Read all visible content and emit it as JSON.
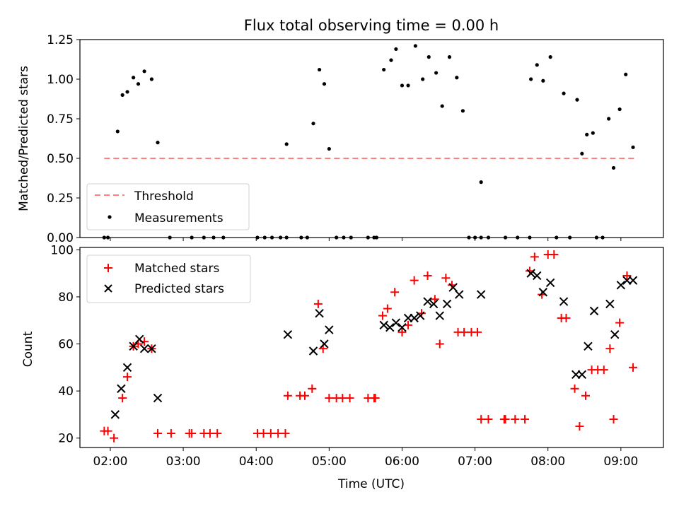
{
  "chart_data": [
    {
      "type": "scatter",
      "title": "Flux total observing time = 0.00 h",
      "xlabel": "",
      "ylabel": "Matched/Predicted stars",
      "ylim": [
        0,
        1.25
      ],
      "xlim": [
        "01:35",
        "09:35"
      ],
      "yticks": [
        "0.00",
        "0.25",
        "0.50",
        "0.75",
        "1.00",
        "1.25"
      ],
      "grid": false,
      "legend_position": "lower-left",
      "threshold": {
        "name": "Threshold",
        "y": 0.5,
        "x_start": "01:55",
        "x_end": "09:12",
        "color": "#ff7f7f",
        "style": "dashed"
      },
      "series": [
        {
          "name": "Measurements",
          "color": "#000000",
          "marker": "dot",
          "points": [
            [
              "01:55",
              0
            ],
            [
              "01:58",
              0
            ],
            [
              "02:06",
              0.67
            ],
            [
              "02:10",
              0.9
            ],
            [
              "02:14",
              0.92
            ],
            [
              "02:19",
              1.01
            ],
            [
              "02:23",
              0.97
            ],
            [
              "02:28",
              1.05
            ],
            [
              "02:34",
              1.0
            ],
            [
              "02:39",
              0.6
            ],
            [
              "02:49",
              0
            ],
            [
              "03:07",
              0
            ],
            [
              "03:17",
              0
            ],
            [
              "03:25",
              0
            ],
            [
              "03:33",
              0
            ],
            [
              "04:01",
              0
            ],
            [
              "04:07",
              0
            ],
            [
              "04:13",
              0
            ],
            [
              "04:20",
              0
            ],
            [
              "04:25",
              0
            ],
            [
              "04:25",
              0.59
            ],
            [
              "04:37",
              0
            ],
            [
              "04:42",
              0
            ],
            [
              "04:47",
              0.72
            ],
            [
              "04:52",
              1.06
            ],
            [
              "04:56",
              0.97
            ],
            [
              "05:00",
              0.56
            ],
            [
              "05:06",
              0
            ],
            [
              "05:12",
              0
            ],
            [
              "05:18",
              0
            ],
            [
              "05:32",
              0
            ],
            [
              "05:37",
              0
            ],
            [
              "05:39",
              0
            ],
            [
              "05:45",
              1.06
            ],
            [
              "05:51",
              1.12
            ],
            [
              "05:55",
              1.19
            ],
            [
              "06:00",
              0.96
            ],
            [
              "06:05",
              0.96
            ],
            [
              "06:11",
              1.21
            ],
            [
              "06:17",
              1.0
            ],
            [
              "06:22",
              1.14
            ],
            [
              "06:28",
              1.04
            ],
            [
              "06:33",
              0.83
            ],
            [
              "06:39",
              1.14
            ],
            [
              "06:45",
              1.01
            ],
            [
              "06:50",
              0.8
            ],
            [
              "06:55",
              0
            ],
            [
              "07:00",
              0
            ],
            [
              "07:05",
              0
            ],
            [
              "07:05",
              0.35
            ],
            [
              "07:11",
              0
            ],
            [
              "07:25",
              0
            ],
            [
              "07:35",
              0
            ],
            [
              "07:45",
              0
            ],
            [
              "07:46",
              1.0
            ],
            [
              "07:51",
              1.09
            ],
            [
              "07:56",
              0.99
            ],
            [
              "08:02",
              1.14
            ],
            [
              "08:07",
              0
            ],
            [
              "08:13",
              0.91
            ],
            [
              "08:18",
              0
            ],
            [
              "08:24",
              0.87
            ],
            [
              "08:28",
              0.53
            ],
            [
              "08:32",
              0.65
            ],
            [
              "08:37",
              0.66
            ],
            [
              "08:40",
              0
            ],
            [
              "08:45",
              0
            ],
            [
              "08:50",
              0.75
            ],
            [
              "08:54",
              0.44
            ],
            [
              "08:59",
              0.81
            ],
            [
              "09:04",
              1.03
            ],
            [
              "09:10",
              0.57
            ]
          ]
        }
      ]
    },
    {
      "type": "scatter",
      "title": "",
      "xlabel": "Time (UTC)",
      "ylabel": "Count",
      "ylim": [
        16,
        101
      ],
      "xlim": [
        "01:35",
        "09:35"
      ],
      "xticks": [
        "02:00",
        "03:00",
        "04:00",
        "05:00",
        "06:00",
        "07:00",
        "08:00",
        "09:00"
      ],
      "yticks": [
        "20",
        "40",
        "60",
        "80",
        "100"
      ],
      "grid": false,
      "legend_position": "upper-left",
      "series": [
        {
          "name": "Matched stars",
          "color": "#ff0000",
          "marker": "plus",
          "points": [
            [
              "01:55",
              23
            ],
            [
              "01:58",
              23
            ],
            [
              "02:03",
              20
            ],
            [
              "02:10",
              37
            ],
            [
              "02:14",
              46
            ],
            [
              "02:19",
              59
            ],
            [
              "02:23",
              60
            ],
            [
              "02:28",
              61
            ],
            [
              "02:34",
              58
            ],
            [
              "02:39",
              22
            ],
            [
              "02:50",
              22
            ],
            [
              "03:05",
              22
            ],
            [
              "03:07",
              22
            ],
            [
              "03:17",
              22
            ],
            [
              "03:22",
              22
            ],
            [
              "03:28",
              22
            ],
            [
              "04:01",
              22
            ],
            [
              "04:06",
              22
            ],
            [
              "04:12",
              22
            ],
            [
              "04:18",
              22
            ],
            [
              "04:24",
              22
            ],
            [
              "04:26",
              38
            ],
            [
              "04:36",
              38
            ],
            [
              "04:40",
              38
            ],
            [
              "04:46",
              41
            ],
            [
              "04:51",
              77
            ],
            [
              "04:55",
              58
            ],
            [
              "05:00",
              37
            ],
            [
              "05:06",
              37
            ],
            [
              "05:11",
              37
            ],
            [
              "05:17",
              37
            ],
            [
              "05:32",
              37
            ],
            [
              "05:37",
              37
            ],
            [
              "05:38",
              37
            ],
            [
              "05:44",
              72
            ],
            [
              "05:48",
              75
            ],
            [
              "05:54",
              82
            ],
            [
              "06:00",
              65
            ],
            [
              "06:05",
              68
            ],
            [
              "06:10",
              87
            ],
            [
              "06:16",
              73
            ],
            [
              "06:21",
              89
            ],
            [
              "06:27",
              79
            ],
            [
              "06:31",
              60
            ],
            [
              "06:36",
              88
            ],
            [
              "06:41",
              85
            ],
            [
              "06:46",
              65
            ],
            [
              "06:51",
              65
            ],
            [
              "06:57",
              65
            ],
            [
              "07:02",
              65
            ],
            [
              "07:05",
              28
            ],
            [
              "07:11",
              28
            ],
            [
              "07:24",
              28
            ],
            [
              "07:25",
              28
            ],
            [
              "07:33",
              28
            ],
            [
              "07:41",
              28
            ],
            [
              "07:45",
              91
            ],
            [
              "07:49",
              97
            ],
            [
              "07:55",
              81
            ],
            [
              "08:00",
              98
            ],
            [
              "08:05",
              98
            ],
            [
              "08:11",
              71
            ],
            [
              "08:15",
              71
            ],
            [
              "08:22",
              41
            ],
            [
              "08:26",
              25
            ],
            [
              "08:31",
              38
            ],
            [
              "08:36",
              49
            ],
            [
              "08:41",
              49
            ],
            [
              "08:46",
              49
            ],
            [
              "08:51",
              58
            ],
            [
              "08:54",
              28
            ],
            [
              "08:59",
              69
            ],
            [
              "09:05",
              89
            ],
            [
              "09:10",
              50
            ]
          ]
        },
        {
          "name": "Predicted stars",
          "color": "#000000",
          "marker": "x",
          "points": [
            [
              "02:04",
              30
            ],
            [
              "02:09",
              41
            ],
            [
              "02:14",
              50
            ],
            [
              "02:19",
              59
            ],
            [
              "02:24",
              62
            ],
            [
              "02:28",
              58
            ],
            [
              "02:34",
              58
            ],
            [
              "02:39",
              37
            ],
            [
              "04:26",
              64
            ],
            [
              "04:47",
              57
            ],
            [
              "04:52",
              73
            ],
            [
              "04:56",
              60
            ],
            [
              "05:00",
              66
            ],
            [
              "05:45",
              68
            ],
            [
              "05:50",
              67
            ],
            [
              "05:55",
              69
            ],
            [
              "06:00",
              67
            ],
            [
              "06:05",
              71
            ],
            [
              "06:10",
              71
            ],
            [
              "06:15",
              72
            ],
            [
              "06:21",
              78
            ],
            [
              "06:26",
              77
            ],
            [
              "06:31",
              72
            ],
            [
              "06:37",
              77
            ],
            [
              "06:42",
              84
            ],
            [
              "06:47",
              81
            ],
            [
              "07:05",
              81
            ],
            [
              "07:46",
              90
            ],
            [
              "07:51",
              89
            ],
            [
              "07:56",
              82
            ],
            [
              "08:02",
              86
            ],
            [
              "08:13",
              78
            ],
            [
              "08:23",
              47
            ],
            [
              "08:28",
              47
            ],
            [
              "08:33",
              59
            ],
            [
              "08:38",
              74
            ],
            [
              "08:51",
              77
            ],
            [
              "08:55",
              64
            ],
            [
              "09:00",
              85
            ],
            [
              "09:05",
              87
            ],
            [
              "09:10",
              87
            ]
          ]
        }
      ]
    }
  ]
}
